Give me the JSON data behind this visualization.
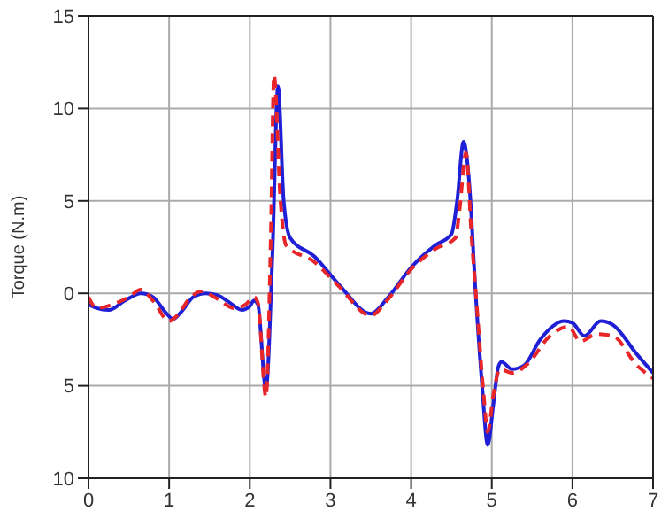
{
  "chart_data": {
    "type": "line",
    "ylabel": "Torque (N.m)",
    "xlim": [
      0,
      7
    ],
    "xticks": [
      0,
      1,
      2,
      3,
      4,
      5,
      6,
      7
    ],
    "ylim": [
      -10,
      15
    ],
    "yticks": [
      {
        "value": -10,
        "label": "10"
      },
      {
        "value": -5,
        "label": "5"
      },
      0,
      5,
      10,
      15
    ],
    "grid": true,
    "legend": false,
    "marker": "none",
    "series": [
      {
        "color": "#1f1fd6",
        "line_style": "solid",
        "x": [
          0,
          0.1,
          0.25,
          0.45,
          0.65,
          0.8,
          0.95,
          1.05,
          1.15,
          1.3,
          1.45,
          1.6,
          1.75,
          1.9,
          2.0,
          2.05,
          2.1,
          2.2,
          2.28,
          2.35,
          2.42,
          2.5,
          2.8,
          3.1,
          3.5,
          3.7,
          4.0,
          4.3,
          4.5,
          4.57,
          4.65,
          4.72,
          4.8,
          4.88,
          4.95,
          5.02,
          5.08,
          5.12,
          5.25,
          5.4,
          5.6,
          5.9,
          6.0,
          6.15,
          6.35,
          6.5,
          6.8,
          7.0
        ],
        "values": [
          -0.6,
          -0.8,
          -0.9,
          -0.4,
          0,
          -0.2,
          -1.0,
          -1.4,
          -1.0,
          -0.2,
          0,
          -0.1,
          -0.5,
          -0.9,
          -0.7,
          -0.4,
          -0.6,
          -5.2,
          2,
          11.2,
          5,
          3,
          2,
          0.5,
          -1.1,
          -0.3,
          1.4,
          2.6,
          3.2,
          5,
          8.2,
          6,
          0,
          -5,
          -8.2,
          -6,
          -4,
          -3.7,
          -4.1,
          -3.9,
          -2.5,
          -1.5,
          -1.6,
          -2.3,
          -1.5,
          -1.7,
          -3.3,
          -4.3
        ]
      },
      {
        "color": "#e8262a",
        "line_style": "dashed",
        "x": [
          0,
          0.1,
          0.3,
          0.5,
          0.65,
          0.8,
          1.0,
          1.1,
          1.25,
          1.4,
          1.6,
          1.8,
          1.95,
          2.05,
          2.1,
          2.2,
          2.26,
          2.3,
          2.38,
          2.45,
          2.8,
          3.1,
          3.5,
          3.7,
          4.0,
          4.3,
          4.55,
          4.6,
          4.68,
          4.75,
          4.82,
          4.9,
          4.95,
          5.02,
          5.1,
          5.25,
          5.45,
          5.7,
          5.95,
          6.1,
          6.3,
          6.5,
          6.8,
          7.0
        ],
        "values": [
          -0.2,
          -0.8,
          -0.6,
          -0.2,
          0.2,
          -0.4,
          -1.5,
          -1.2,
          -0.3,
          0.1,
          -0.3,
          -0.8,
          -0.6,
          -0.2,
          -0.5,
          -5.6,
          3,
          11.8,
          5,
          2.6,
          1.7,
          0.4,
          -1.2,
          -0.4,
          1.3,
          2.4,
          3,
          4.5,
          7.6,
          3,
          -1,
          -5.5,
          -7.5,
          -5.5,
          -4.1,
          -4.3,
          -3.8,
          -2.4,
          -1.8,
          -2.6,
          -2.2,
          -2.3,
          -3.9,
          -4.6
        ]
      }
    ]
  }
}
